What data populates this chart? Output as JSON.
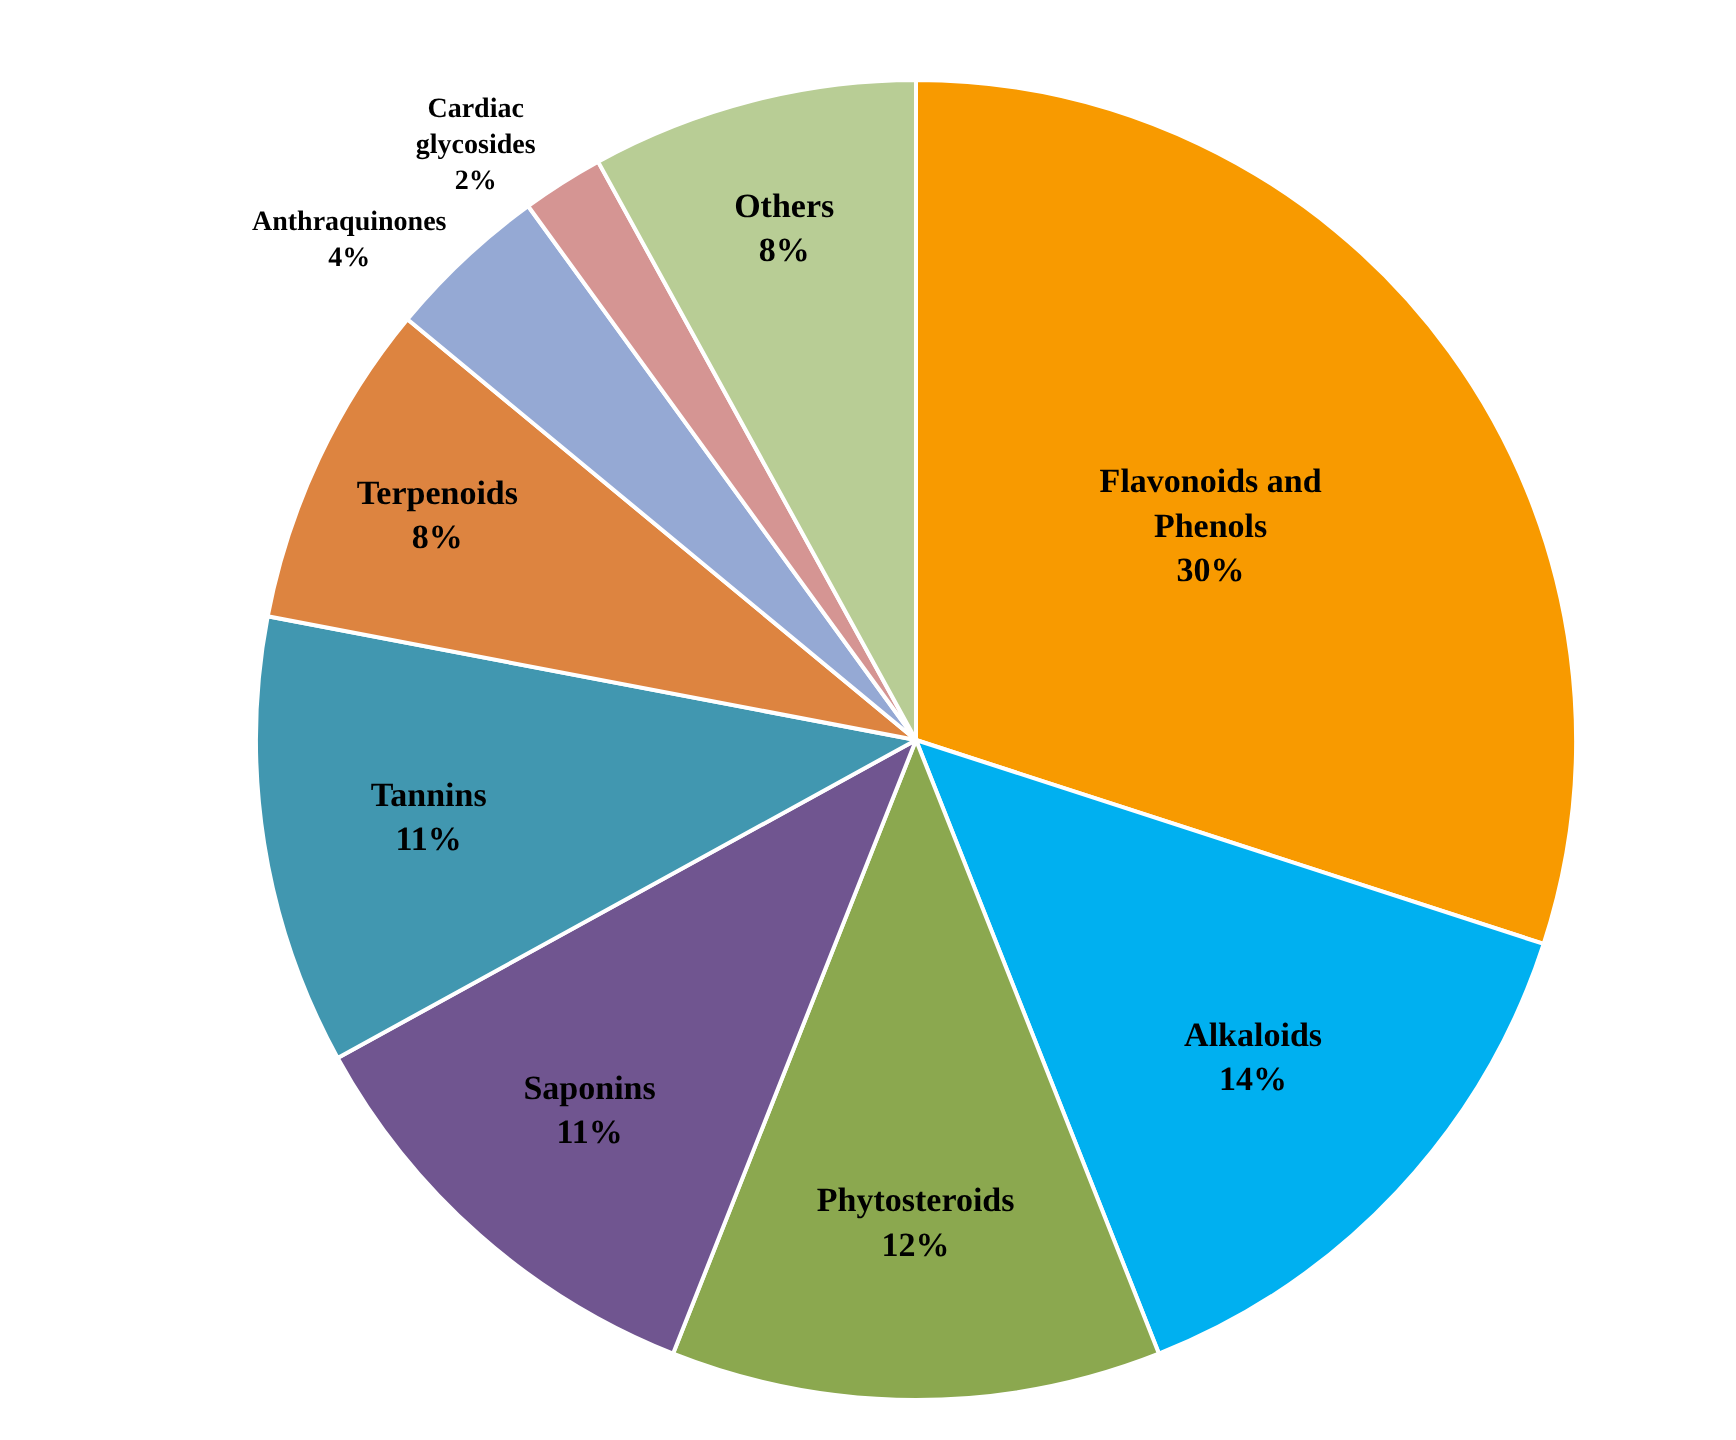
{
  "chart_data": {
    "type": "pie",
    "categories": [
      "Flavonoids and Phenols",
      "Alkaloids",
      "Phytosteroids",
      "Saponins",
      "Tannins",
      "Terpenoids",
      "Anthraquinones",
      "Cardiac glycosides",
      "Others"
    ],
    "values": [
      30,
      14,
      12,
      11,
      11,
      8,
      4,
      2,
      8
    ],
    "colors": [
      "#f89a00",
      "#00b0f0",
      "#8ba84f",
      "#705590",
      "#4197b0",
      "#dd8440",
      "#95a9d4",
      "#d59593",
      "#b8cd95"
    ],
    "value_labels": [
      "30%",
      "14%",
      "12%",
      "11%",
      "11%",
      "8%",
      "4%",
      "2%",
      "8%"
    ],
    "legend": false
  }
}
